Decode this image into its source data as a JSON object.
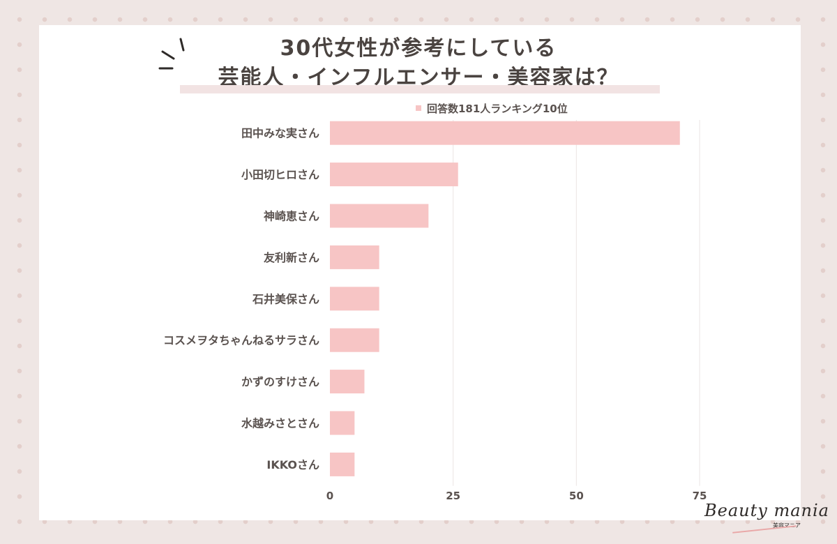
{
  "title_line1": "30代女性が参考にしている",
  "title_line2": "芸能人・インフルエンサー・美容家は？",
  "chart_data": {
    "type": "bar",
    "orientation": "horizontal",
    "categories": [
      "田中みな実さん",
      "小田切ヒロさん",
      "神崎恵さん",
      "友利新さん",
      "石井美保さん",
      "コスメヲタちゃんねるサラさん",
      "かずのすけさん",
      "水越みさとさん",
      "IKKOさん"
    ],
    "series": [
      {
        "name": "回答数181人ランキング10位",
        "values": [
          71,
          26,
          20,
          10,
          10,
          10,
          7,
          5,
          5
        ]
      }
    ],
    "xlim": [
      0,
      75
    ],
    "xticks": [
      0,
      25,
      50,
      75
    ],
    "grid": true,
    "legend_position": "top",
    "bar_color": "#f7c5c5"
  },
  "logo": {
    "text": "Beauty mania",
    "subtext": "美容マニア"
  }
}
